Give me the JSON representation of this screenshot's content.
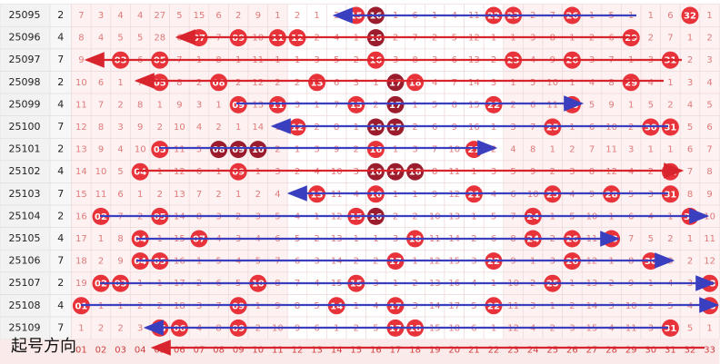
{
  "rows": [
    {
      "issue": "25095",
      "count": 2,
      "cells": [
        7,
        3,
        4,
        4,
        27,
        5,
        15,
        6,
        2,
        9,
        1,
        2,
        1,
        3,
        {
          "ball": "15"
        },
        {
          "ball": "16",
          "color": "#9b1c2c"
        },
        1,
        6,
        1,
        4,
        11,
        {
          "ball": "22"
        },
        {
          "ball": "23"
        },
        2,
        7,
        {
          "ball": "26"
        },
        1,
        5,
        1,
        1,
        6,
        {
          "ball": "32"
        },
        1
      ]
    },
    {
      "issue": "25096",
      "count": 4,
      "cells": [
        8,
        4,
        5,
        5,
        28,
        6,
        {
          "ball": "07"
        },
        7,
        {
          "ball": "09"
        },
        10,
        {
          "ball": "11"
        },
        {
          "ball": "12"
        },
        2,
        4,
        1,
        {
          "ball": "16",
          "color": "#9b1c2c"
        },
        2,
        7,
        2,
        5,
        12,
        1,
        1,
        3,
        8,
        1,
        2,
        6,
        {
          "ball": "29"
        },
        2,
        7,
        1,
        2
      ]
    },
    {
      "issue": "25097",
      "count": 7,
      "cells": [
        9,
        5,
        {
          "ball": "03"
        },
        6,
        {
          "ball": "05"
        },
        7,
        1,
        8,
        1,
        11,
        1,
        1,
        3,
        5,
        2,
        {
          "ball": "16"
        },
        3,
        8,
        3,
        6,
        13,
        2,
        {
          "ball": "23"
        },
        4,
        9,
        {
          "ball": "26"
        },
        3,
        7,
        1,
        3,
        {
          "ball": "31"
        },
        2,
        3
      ]
    },
    {
      "issue": "25098",
      "count": 2,
      "cells": [
        10,
        6,
        1,
        7,
        {
          "ball": "05"
        },
        8,
        2,
        {
          "ball": "08"
        },
        2,
        12,
        2,
        2,
        {
          "ball": "13"
        },
        6,
        3,
        1,
        {
          "ball": "17",
          "color": "#9b1c2c"
        },
        {
          "ball": "18"
        },
        4,
        7,
        14,
        3,
        1,
        5,
        10,
        1,
        4,
        8,
        {
          "ball": "29"
        },
        4,
        1,
        3,
        4
      ]
    },
    {
      "issue": "25099",
      "count": 4,
      "cells": [
        11,
        7,
        2,
        8,
        1,
        9,
        3,
        1,
        {
          "ball": "09"
        },
        13,
        {
          "ball": "11"
        },
        3,
        1,
        7,
        {
          "ball": "15"
        },
        2,
        {
          "ball": "17",
          "color": "#9b1c2c"
        },
        1,
        5,
        8,
        15,
        {
          "ball": "22"
        },
        2,
        6,
        11,
        {
          "ball": "26"
        },
        5,
        9,
        1,
        5,
        2,
        4,
        5
      ]
    },
    {
      "issue": "25100",
      "count": 7,
      "cells": [
        12,
        8,
        3,
        9,
        2,
        10,
        4,
        2,
        1,
        14,
        1,
        {
          "ball": "12"
        },
        2,
        8,
        1,
        {
          "ball": "16",
          "color": "#9b1c2c"
        },
        {
          "ball": "17",
          "color": "#9b1c2c"
        },
        2,
        6,
        9,
        16,
        1,
        3,
        7,
        {
          "ball": "25"
        },
        1,
        6,
        10,
        2,
        {
          "ball": "30"
        },
        {
          "ball": "31"
        },
        5,
        6
      ]
    },
    {
      "issue": "25101",
      "count": 2,
      "cells": [
        13,
        9,
        4,
        10,
        {
          "ball": "05"
        },
        11,
        5,
        {
          "ball": "08",
          "color": "#9b1c2c"
        },
        {
          "ball": "09",
          "color": "#9b1c2c"
        },
        {
          "ball": "10",
          "color": "#9b1c2c"
        },
        2,
        1,
        3,
        9,
        2,
        {
          "ball": "16"
        },
        1,
        3,
        7,
        10,
        {
          "ball": "21"
        },
        2,
        4,
        8,
        1,
        2,
        7,
        11,
        3,
        1,
        1,
        6,
        7
      ]
    },
    {
      "issue": "25102",
      "count": 4,
      "cells": [
        14,
        10,
        5,
        {
          "ball": "04"
        },
        1,
        12,
        6,
        1,
        {
          "ball": "09"
        },
        1,
        3,
        2,
        4,
        10,
        3,
        {
          "ball": "16",
          "color": "#9b1c2c"
        },
        {
          "ball": "17",
          "color": "#9b1c2c"
        },
        {
          "ball": "18",
          "color": "#9b1c2c"
        },
        8,
        11,
        1,
        3,
        5,
        9,
        2,
        3,
        8,
        12,
        4,
        2,
        {
          "ball": "31"
        },
        7,
        8
      ]
    },
    {
      "issue": "25103",
      "count": 7,
      "cells": [
        15,
        11,
        6,
        1,
        2,
        13,
        7,
        2,
        1,
        2,
        4,
        3,
        {
          "ball": "13"
        },
        11,
        4,
        {
          "ball": "16"
        },
        1,
        1,
        9,
        12,
        {
          "ball": "21"
        },
        4,
        6,
        10,
        {
          "ball": "25"
        },
        4,
        9,
        {
          "ball": "28"
        },
        5,
        3,
        {
          "ball": "31"
        },
        8,
        9
      ]
    },
    {
      "issue": "25104",
      "count": 2,
      "cells": [
        16,
        {
          "ball": "02"
        },
        7,
        2,
        {
          "ball": "05"
        },
        14,
        8,
        3,
        2,
        3,
        5,
        4,
        1,
        12,
        {
          "ball": "15"
        },
        {
          "ball": "16",
          "color": "#9b1c2c"
        },
        2,
        2,
        10,
        13,
        1,
        5,
        7,
        {
          "ball": "24"
        },
        1,
        5,
        10,
        1,
        6,
        4,
        1,
        {
          "ball": "32"
        },
        10
      ]
    },
    {
      "issue": "25105",
      "count": 4,
      "cells": [
        17,
        1,
        8,
        {
          "ball": "04"
        },
        1,
        15,
        {
          "ball": "07"
        },
        4,
        3,
        4,
        6,
        5,
        2,
        13,
        1,
        1,
        3,
        {
          "ball": "18"
        },
        11,
        14,
        2,
        6,
        8,
        {
          "ball": "24"
        },
        2,
        {
          "ball": "26"
        },
        11,
        {
          "ball": "28"
        },
        7,
        5,
        2,
        1,
        11
      ]
    },
    {
      "issue": "25106",
      "count": 7,
      "cells": [
        18,
        2,
        9,
        {
          "ball": "04"
        },
        {
          "ball": "05"
        },
        16,
        1,
        5,
        4,
        5,
        7,
        6,
        3,
        14,
        2,
        2,
        {
          "ball": "17"
        },
        1,
        12,
        15,
        3,
        {
          "ball": "22"
        },
        9,
        1,
        3,
        {
          "ball": "26"
        },
        12,
        1,
        8,
        {
          "ball": "30"
        },
        3,
        2,
        12
      ]
    },
    {
      "issue": "25107",
      "count": 2,
      "cells": [
        19,
        {
          "ball": "02"
        },
        {
          "ball": "03"
        },
        1,
        1,
        17,
        2,
        6,
        5,
        {
          "ball": "10"
        },
        8,
        7,
        4,
        15,
        {
          "ball": "15"
        },
        3,
        1,
        2,
        13,
        16,
        4,
        1,
        10,
        2,
        {
          "ball": "25"
        },
        1,
        13,
        2,
        9,
        1,
        4,
        3,
        {
          "ball": "33"
        }
      ]
    },
    {
      "issue": "25108",
      "count": 4,
      "cells": [
        {
          "ball": "01"
        },
        1,
        1,
        2,
        2,
        18,
        3,
        7,
        {
          "ball": "09"
        },
        1,
        9,
        8,
        5,
        {
          "ball": "14"
        },
        1,
        4,
        {
          "ball": "17"
        },
        3,
        14,
        17,
        5,
        {
          "ball": "22"
        },
        11,
        3,
        1,
        2,
        14,
        3,
        10,
        2,
        5,
        4,
        {
          "ball": "33"
        }
      ]
    },
    {
      "issue": "25109",
      "count": 7,
      "cells": [
        1,
        2,
        2,
        3,
        {
          "ball": "05"
        },
        {
          "ball": "06"
        },
        4,
        8,
        {
          "ball": "09"
        },
        2,
        10,
        9,
        6,
        1,
        2,
        5,
        {
          "ball": "17"
        },
        {
          "ball": "18"
        },
        15,
        18,
        6,
        1,
        12,
        4,
        2,
        3,
        15,
        4,
        11,
        3,
        {
          "ball": "31"
        },
        5,
        1
      ]
    }
  ],
  "ball_color": "#e8333a",
  "footer": {
    "label": "起号方向",
    "columns": [
      "01",
      "02",
      "03",
      "04",
      "05",
      "06",
      "07",
      "08",
      "09",
      "10",
      "11",
      "12",
      "13",
      "14",
      "15",
      "16",
      "17",
      "18",
      "19",
      "20",
      "21",
      "22",
      "23",
      "24",
      "25",
      "26",
      "27",
      "28",
      "29",
      "30",
      "31",
      "32",
      "33"
    ]
  }
}
